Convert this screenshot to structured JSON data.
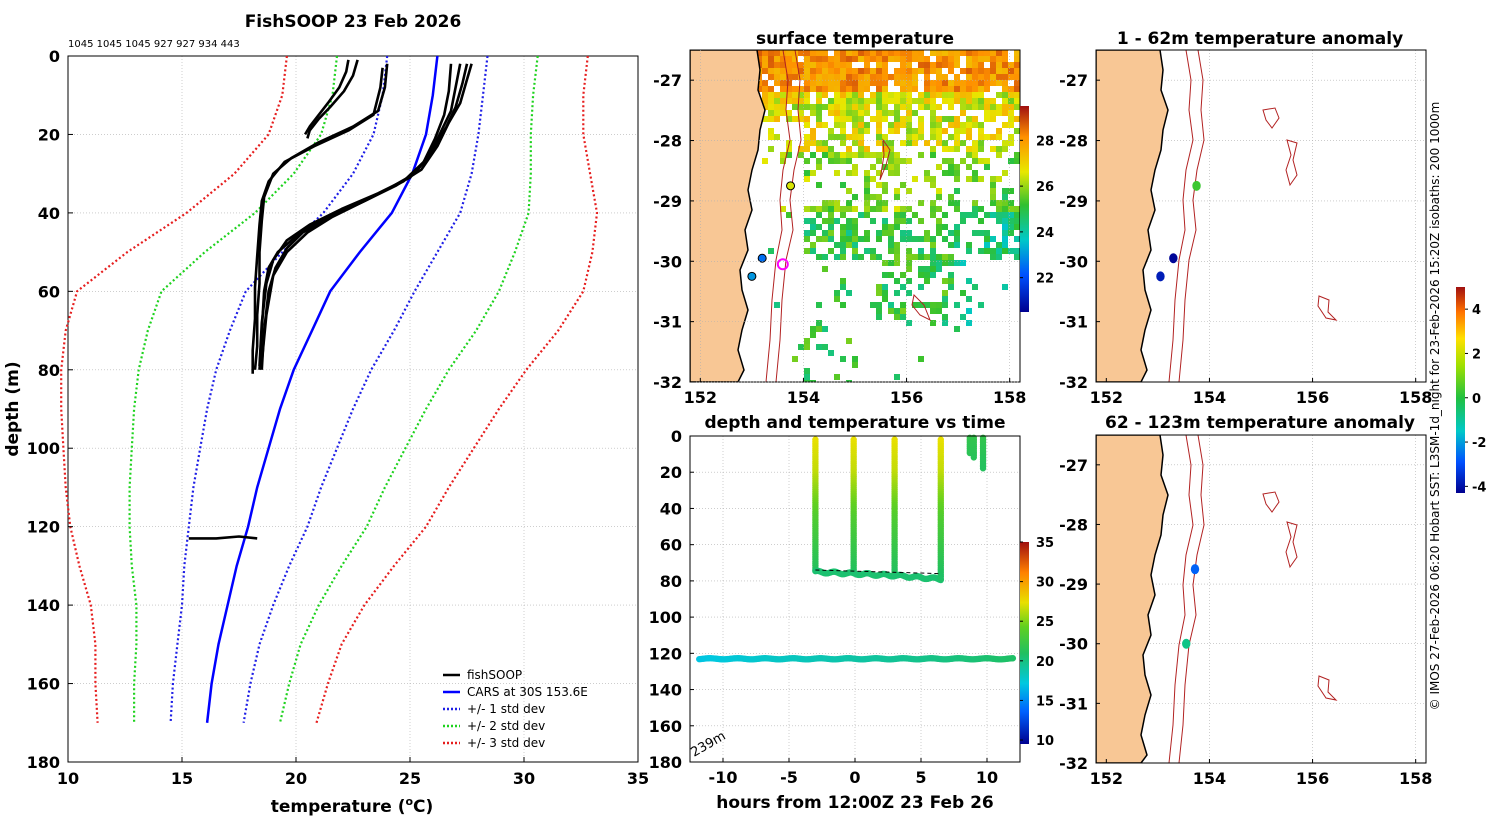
{
  "colors": {
    "land": "#f8c795",
    "fish": "#000000",
    "cars": "#0000ff",
    "std1": "#1e1ee6",
    "std2": "#1ed21e",
    "std3": "#e61e1e",
    "isobath": "#b22222",
    "grid": "#b0b0b0"
  },
  "chart_data": [
    {
      "id": "profile",
      "type": "line",
      "title": "FishSOOP 23 Feb 2026",
      "subtitle": "1045 1045 1045 927 927 934 443",
      "xlabel": "temperature (",
      "xlabel_sup": "o",
      "xlabel_end": "C)",
      "ylabel": "depth (m)",
      "xlim": [
        10,
        35
      ],
      "ylim": [
        0,
        180
      ],
      "xticks": [
        "10",
        "15",
        "20",
        "25",
        "30",
        "35"
      ],
      "yticks": [
        "0",
        "20",
        "40",
        "60",
        "80",
        "100",
        "120",
        "140",
        "160",
        "180"
      ],
      "legend": [
        "fishSOOP",
        "CARS at 30S 153.6E",
        "+/- 1 std dev",
        "+/- 2 std dev",
        "+/- 3 std dev"
      ],
      "legend_position": "bottom-right",
      "cars_mean": {
        "depth": [
          0,
          10,
          20,
          30,
          40,
          50,
          60,
          70,
          80,
          90,
          100,
          110,
          120,
          130,
          140,
          150,
          160,
          170
        ],
        "temp": [
          26.2,
          26.0,
          25.7,
          25.1,
          24.2,
          22.8,
          21.5,
          20.7,
          19.9,
          19.3,
          18.8,
          18.3,
          17.9,
          17.4,
          17.0,
          16.6,
          16.3,
          16.1
        ]
      },
      "std_offsets": {
        "depth": [
          0,
          10,
          20,
          30,
          40,
          50,
          60,
          70,
          80,
          90,
          100,
          110,
          120,
          130,
          140,
          150,
          160,
          170
        ],
        "sd": [
          2.2,
          2.2,
          2.3,
          2.6,
          3.0,
          3.4,
          3.7,
          3.6,
          3.4,
          3.2,
          3.0,
          2.8,
          2.6,
          2.3,
          2.0,
          1.8,
          1.7,
          1.6
        ]
      },
      "fish_profiles": [
        {
          "temp": [
            22.7,
            22.5,
            22.1,
            21.5,
            21.0,
            20.6,
            20.5
          ],
          "depth": [
            1,
            5,
            9,
            13,
            16,
            19,
            21
          ]
        },
        {
          "temp": [
            22.3,
            22.2,
            21.9,
            21.4,
            21.0,
            20.6,
            20.4
          ],
          "depth": [
            1,
            4,
            8,
            12,
            15,
            18,
            20
          ]
        },
        {
          "temp": [
            24.0,
            23.9,
            23.6,
            22.5,
            21.0,
            19.8,
            19.0,
            18.6,
            18.5,
            18.4,
            18.4,
            18.3,
            18.3,
            18.2
          ],
          "depth": [
            2,
            8,
            14,
            18,
            22,
            26,
            30,
            36,
            42,
            50,
            58,
            66,
            74,
            80
          ]
        },
        {
          "temp": [
            23.8,
            23.7,
            23.4,
            22.3,
            20.8,
            19.5,
            18.8,
            18.5,
            18.4,
            18.3,
            18.2,
            18.2,
            18.1,
            18.1
          ],
          "depth": [
            3,
            8,
            15,
            19,
            23,
            27,
            32,
            37,
            43,
            51,
            59,
            67,
            75,
            81
          ]
        },
        {
          "temp": [
            27.5,
            27.3,
            27.0,
            26.6,
            26.0,
            25.2,
            24.0,
            22.5,
            21.0,
            20.0,
            19.2,
            18.8,
            18.6,
            18.5,
            18.4
          ],
          "depth": [
            2,
            7,
            13,
            18,
            24,
            30,
            34,
            38,
            42,
            46,
            50,
            54,
            60,
            70,
            80
          ]
        },
        {
          "temp": [
            27.2,
            27.0,
            26.8,
            26.3,
            25.8,
            25.0,
            23.6,
            22.0,
            20.6,
            19.6,
            19.0,
            18.7,
            18.5,
            18.4
          ],
          "depth": [
            2,
            8,
            14,
            20,
            26,
            31,
            35,
            39,
            43,
            47,
            52,
            58,
            68,
            79
          ]
        },
        {
          "temp": [
            26.8,
            26.7,
            26.5,
            26.1,
            25.6,
            24.7,
            23.0,
            21.5,
            20.3,
            19.6,
            19.1,
            18.8,
            18.6,
            18.5
          ],
          "depth": [
            2,
            9,
            15,
            21,
            27,
            32,
            37,
            41,
            45,
            49,
            54,
            60,
            70,
            80
          ]
        },
        {
          "temp": [
            27.7,
            27.5,
            27.2,
            26.7,
            26.2,
            25.5,
            24.4,
            23.0,
            21.6,
            20.5,
            19.6,
            19.0,
            18.7,
            18.5
          ],
          "depth": [
            2,
            6,
            12,
            17,
            23,
            29,
            33,
            37,
            41,
            45,
            50,
            56,
            66,
            78
          ]
        },
        {
          "temp": [
            15.3,
            16.5,
            17.5,
            18.3
          ],
          "depth": [
            123,
            123,
            122.5,
            123
          ]
        }
      ]
    },
    {
      "id": "sst",
      "type": "heatmap",
      "title": "surface temperature",
      "xlim": [
        151.8,
        158.2
      ],
      "ylim": [
        -32,
        -26.5
      ],
      "xticks": [
        "152",
        "154",
        "156",
        "158"
      ],
      "yticks": [
        "-27",
        "-28",
        "-29",
        "-30",
        "-31",
        "-32"
      ],
      "colorbar_range": [
        20.5,
        29.5
      ],
      "colorbar_ticks": [
        "22",
        "24",
        "26",
        "28"
      ],
      "markers": [
        {
          "lon": 153.75,
          "lat": -28.75,
          "temp": 26.5
        },
        {
          "lon": 153.2,
          "lat": -29.95,
          "temp": 22.5
        },
        {
          "lon": 153.0,
          "lat": -30.25,
          "temp": 23.0
        },
        {
          "lon": 153.6,
          "lat": -30.05,
          "temp": 0,
          "ring": true
        }
      ]
    },
    {
      "id": "timeseries",
      "type": "scatter",
      "title": "depth and temperature vs time",
      "xlabel": "hours from 12:00Z 23 Feb 26",
      "annotation": "239m",
      "xlim": [
        -12.5,
        12.5
      ],
      "ylim": [
        0,
        180
      ],
      "xticks": [
        "-10",
        "-5",
        "0",
        "5",
        "10"
      ],
      "yticks": [
        "0",
        "20",
        "40",
        "60",
        "80",
        "100",
        "120",
        "140",
        "160",
        "180"
      ],
      "colorbar_range": [
        9.5,
        35
      ],
      "colorbar_ticks": [
        "10",
        "15",
        "20",
        "25",
        "30",
        "35"
      ],
      "deep_series": {
        "t_start": -11.8,
        "t_end": 12,
        "depth": 123,
        "temp_start": 17,
        "temp_end": 20.8
      },
      "dives": [
        {
          "t": -3.0,
          "bottom": 75
        },
        {
          "t": -0.1,
          "bottom": 76
        },
        {
          "t": 3.0,
          "bottom": 77
        },
        {
          "t": 6.5,
          "bottom": 79
        }
      ],
      "short_dives": [
        {
          "t": 8.7,
          "bottom": 10
        },
        {
          "t": 9.0,
          "bottom": 12
        },
        {
          "t": 9.7,
          "bottom": 18
        }
      ]
    },
    {
      "id": "anom1",
      "type": "scatter",
      "title": "1 - 62m temperature anomaly",
      "xlim": [
        151.8,
        158.2
      ],
      "ylim": [
        -32,
        -26.5
      ],
      "xticks": [
        "152",
        "154",
        "156",
        "158"
      ],
      "yticks": [
        "-27",
        "-28",
        "-29",
        "-30",
        "-31",
        "-32"
      ],
      "markers": [
        {
          "lon": 153.75,
          "lat": -28.75,
          "anom": 0.3
        },
        {
          "lon": 153.3,
          "lat": -29.95,
          "anom": -4.2
        },
        {
          "lon": 153.05,
          "lat": -30.25,
          "anom": -3.8
        }
      ]
    },
    {
      "id": "anom2",
      "type": "scatter",
      "title": "62 - 123m temperature anomaly",
      "xlim": [
        151.8,
        158.2
      ],
      "ylim": [
        -32,
        -26.5
      ],
      "xticks": [
        "152",
        "154",
        "156",
        "158"
      ],
      "yticks": [
        "-27",
        "-28",
        "-29",
        "-30",
        "-31",
        "-32"
      ],
      "markers": [
        {
          "lon": 153.72,
          "lat": -28.75,
          "anom": -2.7
        },
        {
          "lon": 153.55,
          "lat": -30.0,
          "anom": -0.8
        }
      ]
    }
  ],
  "anomaly_colorbar": {
    "range": [
      -4.3,
      5
    ],
    "ticks": [
      "-4",
      "-2",
      "0",
      "2",
      "4"
    ]
  },
  "side_caption": "© IMOS 27-Feb-2026 06:20 Hobart SST: L3SM-1d_night for 23-Feb-2026 15:20Z isobaths: 200  1000m"
}
